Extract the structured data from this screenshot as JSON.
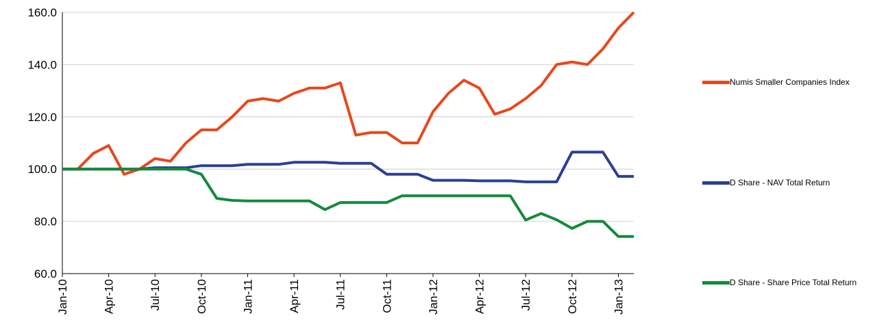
{
  "chart_data": {
    "type": "line",
    "categories": [
      "Jan-10",
      null,
      null,
      "Apr-10",
      null,
      null,
      "Jul-10",
      null,
      null,
      "Oct-10",
      null,
      null,
      "Jan-11",
      null,
      null,
      "Apr-11",
      null,
      null,
      "Jul-11",
      null,
      null,
      "Oct-11",
      null,
      null,
      "Jan-12",
      null,
      null,
      "Apr-12",
      null,
      null,
      "Jul-12",
      null,
      null,
      "Oct-12",
      null,
      null,
      "Jan-13",
      null
    ],
    "series": [
      {
        "name": "Numis Smaller Companies Index",
        "color": "#e8471c",
        "values": [
          100,
          100,
          106,
          109,
          98,
          100,
          104,
          103,
          110,
          115,
          115,
          120,
          126,
          127,
          126,
          129,
          131,
          131,
          133,
          113,
          114,
          114,
          110,
          110,
          122,
          129,
          134,
          131,
          121,
          123,
          127,
          132,
          140,
          141,
          140,
          146,
          154,
          160
        ]
      },
      {
        "name": "D Share  - NAV Total Return",
        "color": "#2a3f94",
        "values": [
          100,
          100,
          100,
          100,
          100,
          100,
          100.5,
          100.5,
          100.5,
          101.3,
          101.3,
          101.3,
          101.8,
          101.8,
          101.8,
          102.6,
          102.6,
          102.6,
          102.2,
          102.2,
          102.2,
          98,
          98,
          98,
          95.7,
          95.7,
          95.7,
          95.5,
          95.5,
          95.5,
          95.1,
          95.1,
          95.1,
          106.5,
          106.5,
          106.5,
          97.2,
          97.2
        ]
      },
      {
        "name": "D Share - Share Price Total Return",
        "color": "#138a3a",
        "values": [
          100,
          100,
          100,
          100,
          100,
          100,
          100,
          100,
          100,
          98,
          88.8,
          88,
          87.8,
          87.8,
          87.8,
          87.8,
          87.8,
          84.5,
          87.2,
          87.2,
          87.2,
          87.2,
          89.8,
          89.8,
          89.8,
          89.8,
          89.8,
          89.8,
          89.8,
          89.8,
          80.5,
          83,
          80.6,
          77.3,
          80,
          80,
          74.2,
          74.2
        ]
      }
    ],
    "ylim": [
      60,
      160
    ],
    "yticks": [
      {
        "value": 60,
        "label": "60.0"
      },
      {
        "value": 80,
        "label": "80.0"
      },
      {
        "value": 100,
        "label": "100.0"
      },
      {
        "value": 120,
        "label": "120.0"
      },
      {
        "value": 140,
        "label": "140.0"
      },
      {
        "value": 160,
        "label": "160.0"
      }
    ],
    "grid": true,
    "legend": "right"
  }
}
